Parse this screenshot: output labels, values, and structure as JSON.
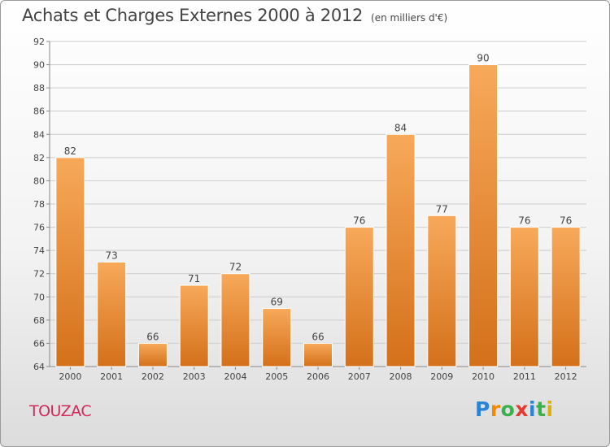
{
  "title": "Achats et Charges Externes 2000 à 2012",
  "unit_note": "(en milliers d'€)",
  "commune": "TOUZAC",
  "logo_text": "Proxiti",
  "colors": {
    "bar_light": "#f7a95a",
    "bar_dark": "#d4701a",
    "grid": "#cccccc",
    "title": "#444444",
    "commune": "#d2285a"
  },
  "chart_data": {
    "type": "bar",
    "categories": [
      "2000",
      "2001",
      "2002",
      "2003",
      "2004",
      "2005",
      "2006",
      "2007",
      "2008",
      "2009",
      "2010",
      "2011",
      "2012"
    ],
    "values": [
      82,
      73,
      66,
      71,
      72,
      69,
      66,
      76,
      84,
      77,
      90,
      76,
      76
    ],
    "ylim": [
      64,
      92
    ],
    "yticks": [
      64,
      66,
      68,
      70,
      72,
      74,
      76,
      78,
      80,
      82,
      84,
      86,
      88,
      90,
      92
    ],
    "grid": true,
    "data_labels": true
  }
}
